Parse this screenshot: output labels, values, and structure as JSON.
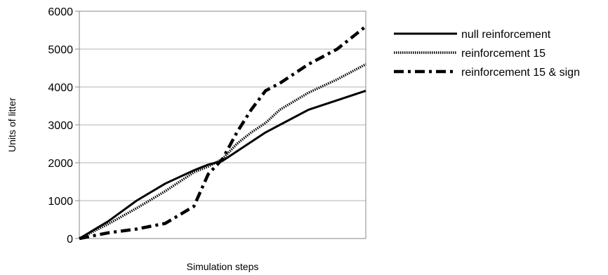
{
  "chart_data": {
    "type": "line",
    "title": "",
    "xlabel": "Simulation steps",
    "ylabel": "Units of litter",
    "x_ticks_shown": false,
    "xlim": [
      0,
      100
    ],
    "ylim": [
      0,
      6000
    ],
    "y_ticks": [
      0,
      1000,
      2000,
      3000,
      4000,
      5000,
      6000
    ],
    "grid": "horizontal",
    "legend_position": "right",
    "x": [
      0,
      10,
      20,
      30,
      40,
      45,
      50,
      55,
      60,
      65,
      70,
      80,
      90,
      100
    ],
    "series": [
      {
        "name": "null reinforcement",
        "style": "solid",
        "values": [
          0,
          450,
          1000,
          1450,
          1800,
          1950,
          2050,
          2300,
          2550,
          2800,
          3000,
          3400,
          3650,
          3900
        ]
      },
      {
        "name": "reinforcement 15",
        "style": "dotted",
        "values": [
          0,
          380,
          800,
          1250,
          1750,
          1900,
          2100,
          2500,
          2800,
          3050,
          3400,
          3850,
          4200,
          4600
        ]
      },
      {
        "name": "reinforcement 15 & sign",
        "style": "dash-dot",
        "values": [
          0,
          150,
          250,
          400,
          850,
          1700,
          2100,
          2800,
          3400,
          3900,
          4100,
          4600,
          5000,
          5600
        ]
      }
    ]
  }
}
